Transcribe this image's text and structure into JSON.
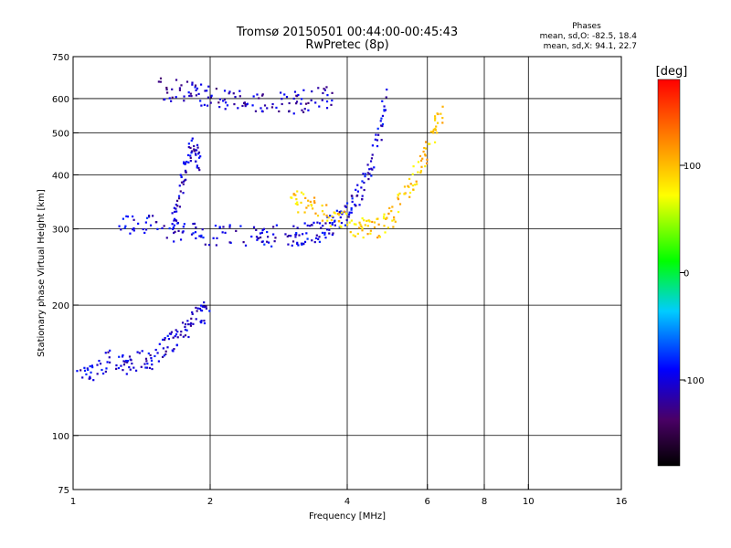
{
  "chart_data": {
    "type": "scatter",
    "title_line1": "Tromsø 20150501 00:44:00-00:45:43",
    "title_line2": "RwPretec (8p)",
    "xlabel": "Frequency [MHz]",
    "ylabel": "Stationary phase Virtual Height [km]",
    "xscale": "log",
    "yscale": "log",
    "xlim": [
      1,
      16
    ],
    "ylim": [
      75,
      750
    ],
    "x_ticks": [
      1,
      2,
      4,
      6,
      8,
      10,
      16
    ],
    "x_tick_labels": [
      "1",
      "2",
      "4",
      "6",
      "8",
      "10",
      "16"
    ],
    "x_gridlines": [
      2,
      4,
      6,
      8,
      10
    ],
    "y_ticks": [
      75,
      100,
      200,
      300,
      400,
      500,
      600,
      750
    ],
    "y_tick_labels": [
      "75",
      "100",
      "200",
      "300",
      "400",
      "500",
      "600",
      "750"
    ],
    "y_gridlines": [
      100,
      200,
      300,
      400,
      500,
      600
    ],
    "grid": true,
    "phase_stats": {
      "heading": "Phases",
      "line1": "mean, sd,O: -82.5, 18.4",
      "line2": "mean, sd,X:  94.1, 22.7"
    },
    "colorbar": {
      "label": "[deg]",
      "range": [
        -180,
        180
      ],
      "ticks": [
        100,
        0,
        -100
      ],
      "tick_labels": [
        "100",
        "0",
        "-100"
      ],
      "colormap": "rainbow-black-to-red"
    },
    "series": [
      {
        "trace": "o-mode-F-layer",
        "x": [
          1.25,
          1.4,
          1.6,
          1.8,
          2.0,
          2.3,
          2.6,
          2.9,
          3.1,
          3.3,
          3.5,
          3.7,
          3.9,
          4.1,
          4.3,
          4.5,
          4.7,
          4.85
        ],
        "y": [
          305,
          310,
          300,
          295,
          292,
          288,
          288,
          290,
          292,
          295,
          298,
          305,
          320,
          340,
          370,
          420,
          500,
          600
        ],
        "phase": -100
      },
      {
        "trace": "o-mode-Es-column",
        "x": [
          1.65,
          1.7,
          1.75,
          1.8,
          1.85,
          1.9
        ],
        "y": [
          300,
          350,
          400,
          450,
          470,
          420
        ],
        "phase": -105
      },
      {
        "trace": "o-mode-upper-band",
        "x": [
          1.55,
          1.7,
          1.85,
          2.0,
          2.2,
          2.5,
          2.8,
          3.1,
          3.4,
          3.7
        ],
        "y": [
          635,
          625,
          620,
          610,
          600,
          590,
          585,
          590,
          600,
          610
        ],
        "phase": -110
      },
      {
        "trace": "x-mode-F-layer",
        "x": [
          3.0,
          3.2,
          3.5,
          3.8,
          4.1,
          4.4,
          4.7,
          5.0,
          5.3,
          5.6,
          5.9,
          6.2,
          6.5
        ],
        "y": [
          355,
          345,
          330,
          315,
          305,
          300,
          305,
          320,
          350,
          390,
          440,
          500,
          570
        ],
        "phase": 95
      },
      {
        "trace": "low-height-E-region",
        "x": [
          1.02,
          1.1,
          1.2,
          1.3,
          1.4,
          1.5,
          1.6,
          1.7,
          1.8,
          1.9,
          2.0
        ],
        "y": [
          135,
          140,
          150,
          145,
          148,
          150,
          160,
          170,
          180,
          190,
          195
        ],
        "phase": -105
      }
    ]
  }
}
